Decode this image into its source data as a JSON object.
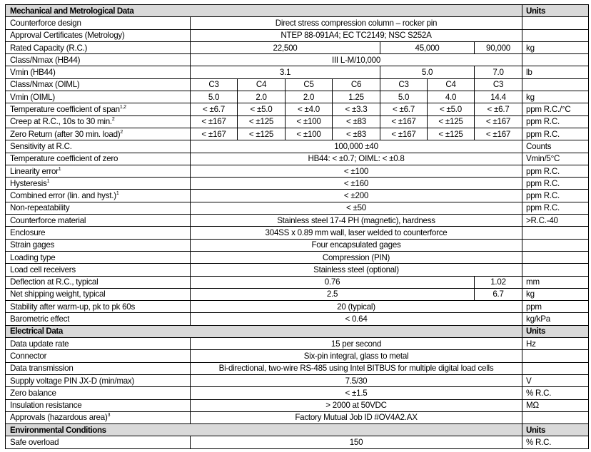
{
  "sections": [
    {
      "title": "Mechanical and Metrological Data",
      "units_header": "Units",
      "rows": [
        {
          "label": "Counterforce design",
          "cells": [
            {
              "v": "Direct stress compression column – rocker pin",
              "span": 7
            }
          ],
          "unit": ""
        },
        {
          "label": "Approval Certificates (Metrology)",
          "cells": [
            {
              "v": "NTEP 88-091A4; EC TC2149; NSC S252A",
              "span": 7
            }
          ],
          "unit": ""
        },
        {
          "label": "Rated Capacity (R.C.)",
          "cells": [
            {
              "v": "22,500",
              "span": 4
            },
            {
              "v": "45,000",
              "span": 2
            },
            {
              "v": "90,000",
              "span": 1
            }
          ],
          "unit": "kg"
        },
        {
          "label": "Class/Nmax (HB44)",
          "cells": [
            {
              "v": "III L-M/10,000",
              "span": 7
            }
          ],
          "unit": ""
        },
        {
          "label": "Vmin (HB44)",
          "cells": [
            {
              "v": "3.1",
              "span": 4
            },
            {
              "v": "5.0",
              "span": 2
            },
            {
              "v": "7.0",
              "span": 1
            }
          ],
          "unit": "lb"
        },
        {
          "label": "Class/Nmax (OIML)",
          "cells": [
            {
              "v": "C3"
            },
            {
              "v": "C4"
            },
            {
              "v": "C5"
            },
            {
              "v": "C6"
            },
            {
              "v": "C3"
            },
            {
              "v": "C4"
            },
            {
              "v": "C3"
            }
          ],
          "unit": ""
        },
        {
          "label": "Vmin (OIML)",
          "cells": [
            {
              "v": "5.0"
            },
            {
              "v": "2.0"
            },
            {
              "v": "2.0"
            },
            {
              "v": "1.25"
            },
            {
              "v": "5.0"
            },
            {
              "v": "4.0"
            },
            {
              "v": "14.4"
            }
          ],
          "unit": "kg"
        },
        {
          "label": "Temperature coefficient of span",
          "sup": "1,2",
          "cells": [
            {
              "v": "< ±6.7"
            },
            {
              "v": "< ±5.0"
            },
            {
              "v": "< ±4.0"
            },
            {
              "v": "< ±3.3"
            },
            {
              "v": "< ±6.7"
            },
            {
              "v": "< ±5.0"
            },
            {
              "v": "< ±6.7"
            }
          ],
          "unit": "ppm R.C./°C"
        },
        {
          "label": "Creep at R.C., 10s to 30 min.",
          "sup": "2",
          "cells": [
            {
              "v": "< ±167"
            },
            {
              "v": "< ±125"
            },
            {
              "v": "< ±100"
            },
            {
              "v": "< ±83"
            },
            {
              "v": "< ±167"
            },
            {
              "v": "< ±125"
            },
            {
              "v": "< ±167"
            }
          ],
          "unit": "ppm R.C."
        },
        {
          "label": "Zero Return (after 30 min. load)",
          "sup": "2",
          "cells": [
            {
              "v": "< ±167"
            },
            {
              "v": "< ±125"
            },
            {
              "v": "< ±100"
            },
            {
              "v": "< ±83"
            },
            {
              "v": "< ±167"
            },
            {
              "v": "< ±125"
            },
            {
              "v": "< ±167"
            }
          ],
          "unit": "ppm R.C."
        },
        {
          "label": "Sensitivity at R.C.",
          "cells": [
            {
              "v": "100,000 ±40",
              "span": 7
            }
          ],
          "unit": "Counts"
        },
        {
          "label": "Temperature coefficient of zero",
          "cells": [
            {
              "v": "HB44: < ±0.7; OIML: < ±0.8",
              "span": 7
            }
          ],
          "unit": "Vmin/5°C"
        },
        {
          "label": "Linearity error",
          "sup": "1",
          "cells": [
            {
              "v": "< ±100",
              "span": 7
            }
          ],
          "unit": "ppm R.C."
        },
        {
          "label": "Hysteresis",
          "sup": "1",
          "cells": [
            {
              "v": "< ±160",
              "span": 7
            }
          ],
          "unit": "ppm R.C."
        },
        {
          "label": "Combined error (lin. and hyst.)",
          "sup": "1",
          "cells": [
            {
              "v": "< ±200",
              "span": 7
            }
          ],
          "unit": "ppm R.C."
        },
        {
          "label": "Non-repeatability",
          "cells": [
            {
              "v": "< ±50",
              "span": 7
            }
          ],
          "unit": "ppm R.C."
        },
        {
          "label": "Counterforce material",
          "cells": [
            {
              "v": "Stainless steel 17-4 PH (magnetic), hardness",
              "span": 7
            }
          ],
          "unit": ">R.C.-40"
        },
        {
          "label": "Enclosure",
          "cells": [
            {
              "v": "304SS x 0.89 mm wall, laser welded to counterforce",
              "span": 7
            }
          ],
          "unit": ""
        },
        {
          "label": "Strain gages",
          "cells": [
            {
              "v": "Four encapsulated gages",
              "span": 7
            }
          ],
          "unit": ""
        },
        {
          "label": "Loading type",
          "cells": [
            {
              "v": "Compression (PIN)",
              "span": 7
            }
          ],
          "unit": ""
        },
        {
          "label": "Load cell receivers",
          "cells": [
            {
              "v": "Stainless steel (optional)",
              "span": 7
            }
          ],
          "unit": ""
        },
        {
          "label": "Deflection at R.C., typical",
          "cells": [
            {
              "v": "0.76",
              "span": 6
            },
            {
              "v": "1.02",
              "span": 1
            }
          ],
          "unit": "mm"
        },
        {
          "label": "Net shipping weight, typical",
          "cells": [
            {
              "v": "2.5",
              "span": 6
            },
            {
              "v": "6.7",
              "span": 1
            }
          ],
          "unit": "kg"
        },
        {
          "label": "Stability after warm-up, pk to pk 60s",
          "cells": [
            {
              "v": "20 (typical)",
              "span": 7
            }
          ],
          "unit": "ppm"
        },
        {
          "label": "Barometric effect",
          "cells": [
            {
              "v": "< 0.64",
              "span": 7
            }
          ],
          "unit": "kg/kPa"
        }
      ]
    },
    {
      "title": "Electrical Data",
      "units_header": "Units",
      "rows": [
        {
          "label": "Data update rate",
          "cells": [
            {
              "v": "15 per second",
              "span": 7
            }
          ],
          "unit": "Hz"
        },
        {
          "label": "Connector",
          "cells": [
            {
              "v": "Six-pin integral, glass to metal",
              "span": 7
            }
          ],
          "unit": ""
        },
        {
          "label": "Data transmission",
          "cells": [
            {
              "v": "Bi-directional, two-wire RS-485 using Intel BITBUS for multiple digital load cells",
              "span": 7
            }
          ],
          "unit": ""
        },
        {
          "label": "Supply voltage PIN JX-D (min/max)",
          "cells": [
            {
              "v": "7.5/30",
              "span": 7
            }
          ],
          "unit": "V"
        },
        {
          "label": "Zero balance",
          "cells": [
            {
              "v": "< ±1.5",
              "span": 7
            }
          ],
          "unit": "% R.C."
        },
        {
          "label": "Insulation resistance",
          "cells": [
            {
              "v": "> 2000 at 50VDC",
              "span": 7
            }
          ],
          "unit": "MΩ"
        },
        {
          "label": "Approvals (hazardous area)",
          "sup": "3",
          "cells": [
            {
              "v": "Factory Mutual Job ID #OV4A2.AX",
              "span": 7
            }
          ],
          "unit": ""
        }
      ]
    },
    {
      "title": "Environmental Conditions",
      "units_header": "Units",
      "rows": [
        {
          "label": "Safe overload",
          "cells": [
            {
              "v": "150",
              "span": 7
            }
          ],
          "unit": "% R.C."
        }
      ]
    }
  ]
}
